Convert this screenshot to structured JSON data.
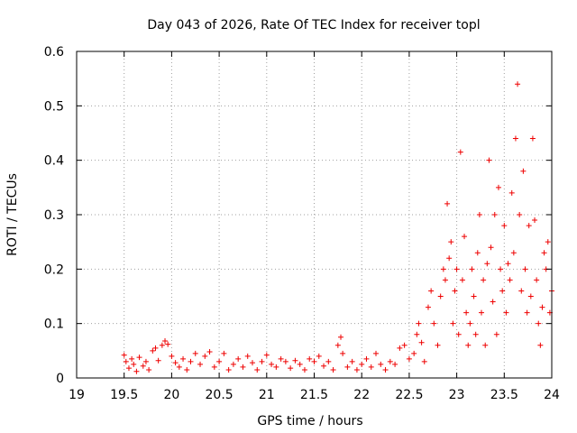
{
  "chart_data": {
    "type": "scatter",
    "title": "Day 043 of 2026, Rate Of TEC Index for receiver topl",
    "xlabel": "GPS time / hours",
    "ylabel": "ROTI / TECUs",
    "xlim": [
      19,
      24
    ],
    "ylim": [
      0,
      0.6
    ],
    "x_ticks": [
      "19",
      "19.5",
      "20",
      "20.5",
      "21",
      "21.5",
      "22",
      "22.5",
      "23",
      "23.5",
      "24"
    ],
    "y_ticks": [
      "0",
      "0.1",
      "0.2",
      "0.3",
      "0.4",
      "0.5",
      "0.6"
    ],
    "grid": true,
    "marker": "plus",
    "marker_color": "#ee0000",
    "series": [
      {
        "name": "ROTI",
        "points": [
          [
            19.5,
            0.042
          ],
          [
            19.52,
            0.03
          ],
          [
            19.55,
            0.018
          ],
          [
            19.58,
            0.035
          ],
          [
            19.6,
            0.025
          ],
          [
            19.63,
            0.012
          ],
          [
            19.66,
            0.038
          ],
          [
            19.7,
            0.022
          ],
          [
            19.73,
            0.03
          ],
          [
            19.76,
            0.015
          ],
          [
            19.8,
            0.05
          ],
          [
            19.83,
            0.055
          ],
          [
            19.86,
            0.032
          ],
          [
            19.9,
            0.06
          ],
          [
            19.93,
            0.068
          ],
          [
            19.96,
            0.062
          ],
          [
            20.0,
            0.04
          ],
          [
            20.04,
            0.028
          ],
          [
            20.08,
            0.02
          ],
          [
            20.12,
            0.035
          ],
          [
            20.16,
            0.015
          ],
          [
            20.2,
            0.03
          ],
          [
            20.25,
            0.045
          ],
          [
            20.3,
            0.025
          ],
          [
            20.35,
            0.04
          ],
          [
            20.4,
            0.048
          ],
          [
            20.45,
            0.02
          ],
          [
            20.5,
            0.03
          ],
          [
            20.55,
            0.045
          ],
          [
            20.6,
            0.015
          ],
          [
            20.65,
            0.025
          ],
          [
            20.7,
            0.035
          ],
          [
            20.75,
            0.02
          ],
          [
            20.8,
            0.04
          ],
          [
            20.85,
            0.028
          ],
          [
            20.9,
            0.015
          ],
          [
            20.95,
            0.03
          ],
          [
            21.0,
            0.042
          ],
          [
            21.05,
            0.025
          ],
          [
            21.1,
            0.02
          ],
          [
            21.15,
            0.035
          ],
          [
            21.2,
            0.03
          ],
          [
            21.25,
            0.018
          ],
          [
            21.3,
            0.032
          ],
          [
            21.35,
            0.025
          ],
          [
            21.4,
            0.015
          ],
          [
            21.45,
            0.035
          ],
          [
            21.5,
            0.03
          ],
          [
            21.55,
            0.04
          ],
          [
            21.6,
            0.022
          ],
          [
            21.65,
            0.03
          ],
          [
            21.7,
            0.015
          ],
          [
            21.75,
            0.06
          ],
          [
            21.78,
            0.075
          ],
          [
            21.8,
            0.045
          ],
          [
            21.85,
            0.02
          ],
          [
            21.9,
            0.03
          ],
          [
            21.95,
            0.015
          ],
          [
            22.0,
            0.025
          ],
          [
            22.05,
            0.035
          ],
          [
            22.1,
            0.02
          ],
          [
            22.15,
            0.045
          ],
          [
            22.2,
            0.025
          ],
          [
            22.25,
            0.015
          ],
          [
            22.3,
            0.03
          ],
          [
            22.35,
            0.025
          ],
          [
            22.4,
            0.055
          ],
          [
            22.45,
            0.06
          ],
          [
            22.5,
            0.035
          ],
          [
            22.55,
            0.045
          ],
          [
            22.58,
            0.08
          ],
          [
            22.6,
            0.1
          ],
          [
            22.63,
            0.065
          ],
          [
            22.66,
            0.03
          ],
          [
            22.7,
            0.13
          ],
          [
            22.73,
            0.16
          ],
          [
            22.76,
            0.1
          ],
          [
            22.8,
            0.06
          ],
          [
            22.83,
            0.15
          ],
          [
            22.86,
            0.2
          ],
          [
            22.88,
            0.18
          ],
          [
            22.9,
            0.32
          ],
          [
            22.92,
            0.22
          ],
          [
            22.94,
            0.25
          ],
          [
            22.96,
            0.1
          ],
          [
            22.98,
            0.16
          ],
          [
            23.0,
            0.2
          ],
          [
            23.02,
            0.08
          ],
          [
            23.04,
            0.415
          ],
          [
            23.06,
            0.18
          ],
          [
            23.08,
            0.26
          ],
          [
            23.1,
            0.12
          ],
          [
            23.12,
            0.06
          ],
          [
            23.14,
            0.1
          ],
          [
            23.16,
            0.2
          ],
          [
            23.18,
            0.15
          ],
          [
            23.2,
            0.08
          ],
          [
            23.22,
            0.23
          ],
          [
            23.24,
            0.3
          ],
          [
            23.26,
            0.12
          ],
          [
            23.28,
            0.18
          ],
          [
            23.3,
            0.06
          ],
          [
            23.32,
            0.21
          ],
          [
            23.34,
            0.4
          ],
          [
            23.36,
            0.24
          ],
          [
            23.38,
            0.14
          ],
          [
            23.4,
            0.3
          ],
          [
            23.42,
            0.08
          ],
          [
            23.44,
            0.35
          ],
          [
            23.46,
            0.2
          ],
          [
            23.48,
            0.16
          ],
          [
            23.5,
            0.28
          ],
          [
            23.52,
            0.12
          ],
          [
            23.54,
            0.21
          ],
          [
            23.56,
            0.18
          ],
          [
            23.58,
            0.34
          ],
          [
            23.6,
            0.23
          ],
          [
            23.62,
            0.44
          ],
          [
            23.64,
            0.54
          ],
          [
            23.66,
            0.3
          ],
          [
            23.68,
            0.16
          ],
          [
            23.7,
            0.38
          ],
          [
            23.72,
            0.2
          ],
          [
            23.74,
            0.12
          ],
          [
            23.76,
            0.28
          ],
          [
            23.78,
            0.15
          ],
          [
            23.8,
            0.44
          ],
          [
            23.82,
            0.29
          ],
          [
            23.84,
            0.18
          ],
          [
            23.86,
            0.1
          ],
          [
            23.88,
            0.06
          ],
          [
            23.9,
            0.13
          ],
          [
            23.92,
            0.23
          ],
          [
            23.94,
            0.2
          ],
          [
            23.96,
            0.25
          ],
          [
            23.98,
            0.12
          ],
          [
            24.0,
            0.16
          ]
        ]
      }
    ]
  }
}
